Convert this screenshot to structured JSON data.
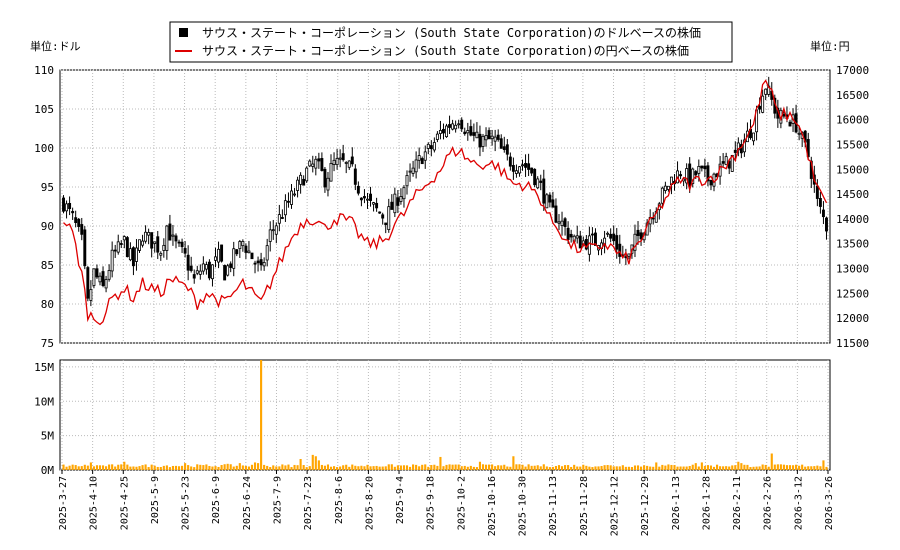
{
  "chart_data": {
    "type": "candlestick+line+bar",
    "legend": {
      "usd_label": "サウス・ステート・コーポレーション (South State Corporation)のドルベースの株価",
      "jpy_label": "サウス・ステート・コーポレーション (South State Corporation)の円ベースの株価",
      "usd_color": "#000000",
      "jpy_color": "#dd0000"
    },
    "left_unit": "単位:ドル",
    "right_unit": "単位:円",
    "usd_ylim": [
      75,
      110
    ],
    "jpy_ylim": [
      11500,
      17000
    ],
    "usd_ticks": [
      "75",
      "80",
      "85",
      "90",
      "95",
      "100",
      "105",
      "110"
    ],
    "jpy_ticks": [
      "11500",
      "12000",
      "12500",
      "13000",
      "13500",
      "14000",
      "14500",
      "15000",
      "15500",
      "16000",
      "16500",
      "17000"
    ],
    "volume_ylim": [
      0,
      16000000
    ],
    "volume_ticks": [
      "0M",
      "5M",
      "10M",
      "15M"
    ],
    "volume_color": "#ffa500",
    "x_ticks": [
      "2025-3-27",
      "2025-4-10",
      "2025-4-25",
      "2025-5-9",
      "2025-5-23",
      "2025-6-9",
      "2025-6-24",
      "2025-7-9",
      "2025-7-23",
      "2025-8-6",
      "2025-8-20",
      "2025-9-4",
      "2025-9-18",
      "2025-10-2",
      "2025-10-16",
      "2025-10-30",
      "2025-11-13",
      "2025-11-28",
      "2025-12-12",
      "2025-12-29",
      "2026-1-13",
      "2026-1-28",
      "2026-2-11",
      "2026-2-26",
      "2026-3-12",
      "2026-3-26"
    ],
    "n_days": 252,
    "usd_close_keypoints": [
      [
        0,
        93
      ],
      [
        3,
        91
      ],
      [
        6,
        88
      ],
      [
        8,
        80
      ],
      [
        10,
        84
      ],
      [
        13,
        82
      ],
      [
        16,
        86
      ],
      [
        20,
        88
      ],
      [
        23,
        85
      ],
      [
        26,
        89
      ],
      [
        29,
        88
      ],
      [
        32,
        87
      ],
      [
        34,
        90
      ],
      [
        36,
        88
      ],
      [
        38,
        87
      ],
      [
        40,
        86
      ],
      [
        43,
        83
      ],
      [
        46,
        85
      ],
      [
        48,
        84
      ],
      [
        51,
        86
      ],
      [
        53,
        84
      ],
      [
        56,
        86
      ],
      [
        59,
        88
      ],
      [
        62,
        86
      ],
      [
        65,
        84
      ],
      [
        68,
        89
      ],
      [
        71,
        91
      ],
      [
        74,
        93
      ],
      [
        77,
        95
      ],
      [
        80,
        97
      ],
      [
        83,
        98
      ],
      [
        86,
        96
      ],
      [
        89,
        98
      ],
      [
        92,
        98
      ],
      [
        95,
        97
      ],
      [
        97,
        95
      ],
      [
        100,
        93
      ],
      [
        103,
        92
      ],
      [
        106,
        91
      ],
      [
        109,
        93
      ],
      [
        112,
        95
      ],
      [
        115,
        97
      ],
      [
        118,
        99
      ],
      [
        121,
        100
      ],
      [
        124,
        102
      ],
      [
        127,
        103
      ],
      [
        130,
        104
      ],
      [
        133,
        102
      ],
      [
        136,
        101
      ],
      [
        139,
        101
      ],
      [
        142,
        101
      ],
      [
        145,
        99
      ],
      [
        148,
        98
      ],
      [
        151,
        98
      ],
      [
        154,
        97
      ],
      [
        157,
        95
      ],
      [
        160,
        92
      ],
      [
        163,
        91
      ],
      [
        166,
        89
      ],
      [
        169,
        88
      ],
      [
        172,
        88
      ],
      [
        175,
        88
      ],
      [
        178,
        89
      ],
      [
        181,
        88
      ],
      [
        184,
        86
      ],
      [
        186,
        86
      ],
      [
        188,
        88
      ],
      [
        191,
        90
      ],
      [
        194,
        92
      ],
      [
        197,
        94
      ],
      [
        200,
        96
      ],
      [
        203,
        97
      ],
      [
        206,
        96
      ],
      [
        209,
        97
      ],
      [
        212,
        96
      ],
      [
        215,
        97
      ],
      [
        218,
        98
      ],
      [
        221,
        99
      ],
      [
        224,
        101
      ],
      [
        227,
        103
      ],
      [
        229,
        106
      ],
      [
        231,
        108
      ],
      [
        233,
        106
      ],
      [
        235,
        104
      ],
      [
        238,
        104
      ],
      [
        241,
        103
      ],
      [
        243,
        101
      ],
      [
        245,
        99
      ],
      [
        247,
        95
      ],
      [
        248,
        93
      ],
      [
        249,
        92
      ],
      [
        250,
        91
      ],
      [
        251,
        90
      ]
    ],
    "jpy_close_keypoints": [
      [
        0,
        14000
      ],
      [
        3,
        13700
      ],
      [
        6,
        12900
      ],
      [
        8,
        12100
      ],
      [
        10,
        12000
      ],
      [
        13,
        12000
      ],
      [
        16,
        12400
      ],
      [
        20,
        12600
      ],
      [
        23,
        12400
      ],
      [
        26,
        12700
      ],
      [
        29,
        12600
      ],
      [
        32,
        12500
      ],
      [
        35,
        12800
      ],
      [
        38,
        12700
      ],
      [
        41,
        12600
      ],
      [
        44,
        12300
      ],
      [
        47,
        12500
      ],
      [
        50,
        12400
      ],
      [
        53,
        12300
      ],
      [
        56,
        12500
      ],
      [
        59,
        12700
      ],
      [
        62,
        12500
      ],
      [
        65,
        12300
      ],
      [
        68,
        12700
      ],
      [
        71,
        13100
      ],
      [
        74,
        13500
      ],
      [
        77,
        13800
      ],
      [
        80,
        14000
      ],
      [
        83,
        14000
      ],
      [
        86,
        13800
      ],
      [
        89,
        14000
      ],
      [
        92,
        14000
      ],
      [
        95,
        13900
      ],
      [
        97,
        13700
      ],
      [
        100,
        13500
      ],
      [
        103,
        13500
      ],
      [
        106,
        13600
      ],
      [
        109,
        13900
      ],
      [
        112,
        14100
      ],
      [
        115,
        14400
      ],
      [
        118,
        14600
      ],
      [
        121,
        14800
      ],
      [
        124,
        15000
      ],
      [
        127,
        15300
      ],
      [
        130,
        15400
      ],
      [
        133,
        15200
      ],
      [
        136,
        15100
      ],
      [
        139,
        15100
      ],
      [
        142,
        15100
      ],
      [
        145,
        14900
      ],
      [
        148,
        14700
      ],
      [
        151,
        14700
      ],
      [
        154,
        14600
      ],
      [
        157,
        14400
      ],
      [
        160,
        14000
      ],
      [
        163,
        13800
      ],
      [
        166,
        13500
      ],
      [
        169,
        13400
      ],
      [
        172,
        13400
      ],
      [
        175,
        13400
      ],
      [
        178,
        13500
      ],
      [
        181,
        13400
      ],
      [
        184,
        13200
      ],
      [
        186,
        13200
      ],
      [
        188,
        13400
      ],
      [
        191,
        13700
      ],
      [
        194,
        14000
      ],
      [
        197,
        14300
      ],
      [
        200,
        14600
      ],
      [
        203,
        14800
      ],
      [
        206,
        14700
      ],
      [
        209,
        14800
      ],
      [
        212,
        14800
      ],
      [
        215,
        14900
      ],
      [
        218,
        15100
      ],
      [
        221,
        15300
      ],
      [
        224,
        15600
      ],
      [
        227,
        15900
      ],
      [
        229,
        16400
      ],
      [
        231,
        16800
      ],
      [
        233,
        16500
      ],
      [
        235,
        16100
      ],
      [
        238,
        16100
      ],
      [
        241,
        16000
      ],
      [
        243,
        15700
      ],
      [
        245,
        15300
      ],
      [
        247,
        14800
      ],
      [
        248,
        14600
      ],
      [
        249,
        14500
      ],
      [
        250,
        14400
      ],
      [
        251,
        14300
      ]
    ],
    "volume_base": 600000,
    "volume_spikes": [
      [
        9,
        1100000
      ],
      [
        20,
        1200000
      ],
      [
        40,
        1000000
      ],
      [
        54,
        900000
      ],
      [
        58,
        1000000
      ],
      [
        63,
        1100000
      ],
      [
        64,
        1000000
      ],
      [
        65,
        16000000
      ],
      [
        78,
        1600000
      ],
      [
        82,
        2200000
      ],
      [
        83,
        2000000
      ],
      [
        84,
        1400000
      ],
      [
        124,
        1900000
      ],
      [
        137,
        1200000
      ],
      [
        148,
        2000000
      ],
      [
        195,
        1100000
      ],
      [
        208,
        1000000
      ],
      [
        210,
        1100000
      ],
      [
        222,
        1200000
      ],
      [
        223,
        1000000
      ],
      [
        233,
        2400000
      ],
      [
        250,
        1400000
      ]
    ]
  }
}
